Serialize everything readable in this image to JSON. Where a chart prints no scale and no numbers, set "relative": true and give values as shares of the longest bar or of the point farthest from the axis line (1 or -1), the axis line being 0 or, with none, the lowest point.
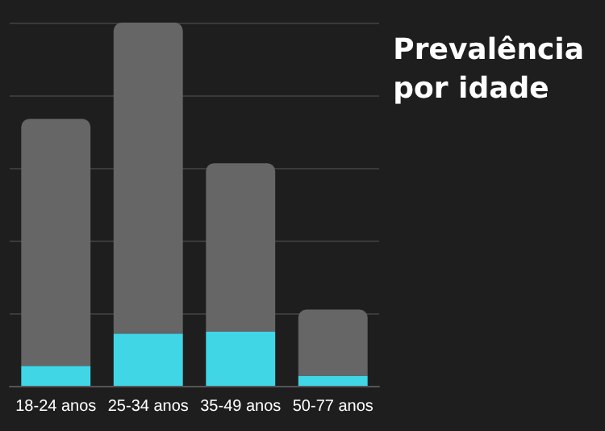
{
  "chart_data": {
    "type": "bar",
    "title": "Prevalência\npor idade",
    "categories": [
      "18-24 anos",
      "25-34 anos",
      "35-49 anos",
      "50-77 anos"
    ],
    "relative": true,
    "grid": "y",
    "stacked": true,
    "series": [
      {
        "color": "#40d6e6",
        "values": [
          0.055,
          0.144,
          0.149,
          0.028
        ]
      },
      {
        "color": "#666666",
        "values": [
          0.68,
          0.856,
          0.464,
          0.182
        ]
      }
    ]
  }
}
